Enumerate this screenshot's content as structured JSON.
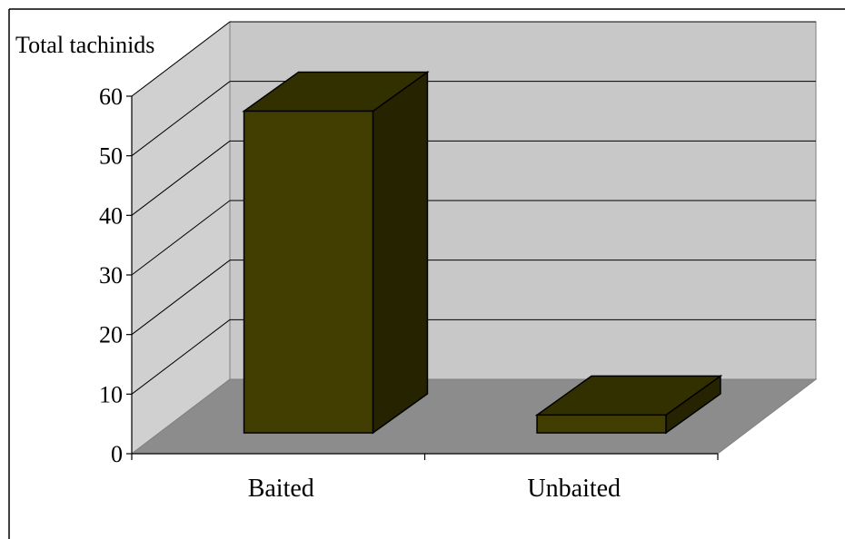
{
  "chart_data": {
    "type": "bar",
    "title": "",
    "xlabel": "",
    "ylabel": "Total tachinids",
    "categories": [
      "Baited",
      "Unbaited"
    ],
    "values": [
      54,
      3
    ],
    "ylim": [
      0,
      60
    ],
    "yticks": [
      0,
      10,
      20,
      30,
      40,
      50,
      60
    ],
    "ytick_labels": [
      "0",
      "10",
      "20",
      "30",
      "40",
      "50",
      "60"
    ],
    "grid": true,
    "legend": "none",
    "style": "3d-column",
    "colors": {
      "bar_front": "#423D00",
      "bar_top": "#333000",
      "bar_side": "#262400",
      "back_wall": "#C8C8C8",
      "side_wall": "#D0D0D0",
      "floor": "#8C8C8C"
    }
  }
}
